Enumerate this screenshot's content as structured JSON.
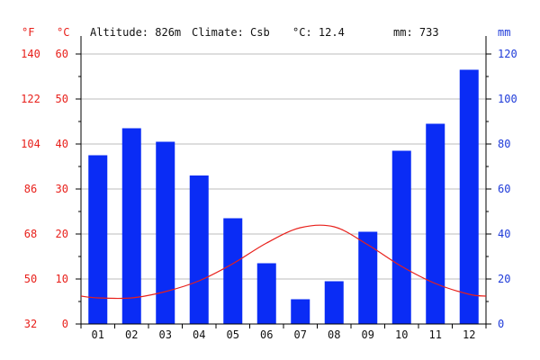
{
  "header": {
    "altitude": "Altitude: 826m",
    "climate": "Climate: Csb",
    "temp_mean": "°C: 12.4",
    "precip_total": "mm: 733"
  },
  "axes": {
    "f_unit": "°F",
    "c_unit": "°C",
    "mm_unit": "mm",
    "f_ticks": [
      "32",
      "50",
      "68",
      "86",
      "104",
      "122",
      "140"
    ],
    "c_ticks": [
      "0",
      "10",
      "20",
      "30",
      "40",
      "50",
      "60"
    ],
    "mm_ticks": [
      "0",
      "20",
      "40",
      "60",
      "80",
      "100",
      "120"
    ]
  },
  "colors": {
    "temperature": "#e8201b",
    "precipitation": "#0a2cf5",
    "grid": "#bbbbbb",
    "axis": "#000000"
  },
  "chart_data": {
    "type": "bar",
    "categories": [
      "01",
      "02",
      "03",
      "04",
      "05",
      "06",
      "07",
      "08",
      "09",
      "10",
      "11",
      "12"
    ],
    "series": [
      {
        "values": [
          75,
          87,
          81,
          66,
          47,
          27,
          11,
          19,
          41,
          77,
          89,
          113
        ]
      },
      {
        "type": "line",
        "values": [
          5.8,
          5.8,
          7.2,
          9.6,
          13.4,
          18.0,
          21.4,
          21.6,
          17.6,
          12.8,
          9.0,
          6.6
        ]
      }
    ],
    "y_left_c_range": [
      0,
      60
    ],
    "y_left_f_range": [
      32,
      140
    ],
    "y_right_mm_range": [
      0,
      120
    ],
    "grid": true
  }
}
